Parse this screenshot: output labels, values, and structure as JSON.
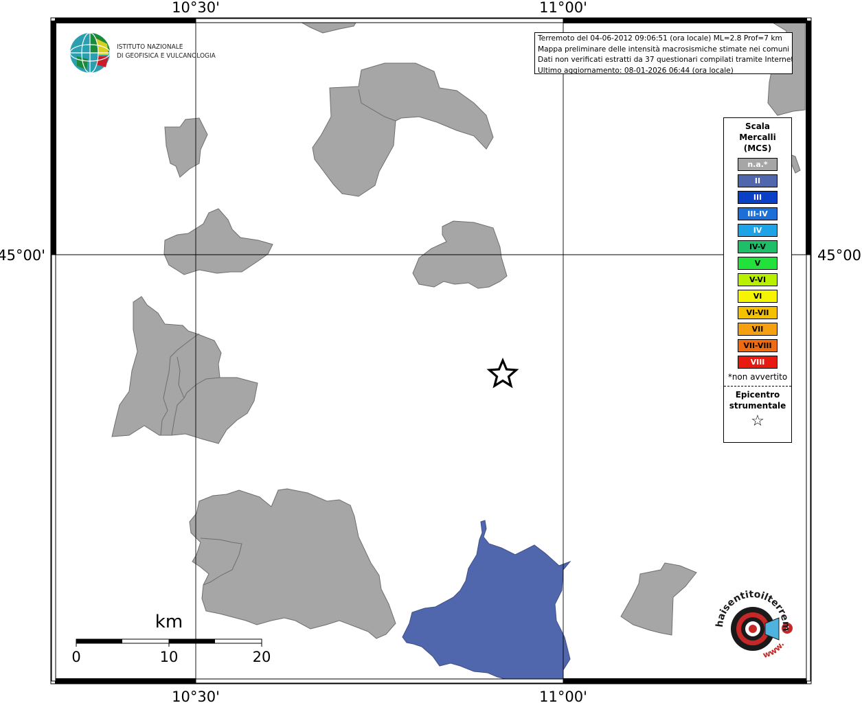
{
  "map": {
    "top_labels": [
      "10°30'",
      "11°00'"
    ],
    "bottom_labels": [
      "10°30'",
      "11°00'"
    ],
    "left_labels": [
      "45°00'"
    ],
    "right_labels": [
      "45°00'"
    ]
  },
  "info": {
    "lines": [
      "Terremoto del 04-06-2012 09:06:51 (ora locale) ML=2.8 Prof=7 km",
      "Mappa preliminare delle intensità macrosismiche stimate nei comuni",
      "Dati non verificati estratti da 37 questionari compilati tramite Internet.",
      "Ultimo aggiornamento: 08-01-2026 06:44 (ora locale)"
    ]
  },
  "logo": {
    "line1": "ISTITUTO NAZIONALE",
    "line2": "DI GEOFISICA E VULCANOLOGIA"
  },
  "scalebar": {
    "unit": "km",
    "ticks": [
      "0",
      "10",
      "20"
    ]
  },
  "legend": {
    "title": "Scala Mercalli (MCS)",
    "items": [
      {
        "label": "n.a.*",
        "color": "#a6a6a6",
        "text_color": "#ffffff"
      },
      {
        "label": "II",
        "color": "#5067ad",
        "text_color": "#ffffff"
      },
      {
        "label": "III",
        "color": "#0b3fc5",
        "text_color": "#ffffff"
      },
      {
        "label": "III-IV",
        "color": "#1d6fd8",
        "text_color": "#ffffff"
      },
      {
        "label": "IV",
        "color": "#1da3e8",
        "text_color": "#ffffff"
      },
      {
        "label": "IV-V",
        "color": "#1fbf6a",
        "text_color": "#000000"
      },
      {
        "label": "V",
        "color": "#22e13a",
        "text_color": "#000000"
      },
      {
        "label": "V-VI",
        "color": "#b8f000",
        "text_color": "#000000"
      },
      {
        "label": "VI",
        "color": "#f5f500",
        "text_color": "#000000"
      },
      {
        "label": "VI-VII",
        "color": "#f5c000",
        "text_color": "#000000"
      },
      {
        "label": "VII",
        "color": "#f5a010",
        "text_color": "#000000"
      },
      {
        "label": "VII-VIII",
        "color": "#f06a10",
        "text_color": "#000000"
      },
      {
        "label": "VIII",
        "color": "#e81a10",
        "text_color": "#ffffff"
      }
    ],
    "note": "*non avvertito",
    "epicenter_label": "Epicentro strumentale",
    "epicenter_symbol": "☆"
  },
  "watermark": {
    "text": "haisentitoilterremoto.it",
    "url_text": "www."
  },
  "colors": {
    "na": "#a6a6a6",
    "intensity_II": "#5067ad",
    "border": "#5a5a5a"
  }
}
